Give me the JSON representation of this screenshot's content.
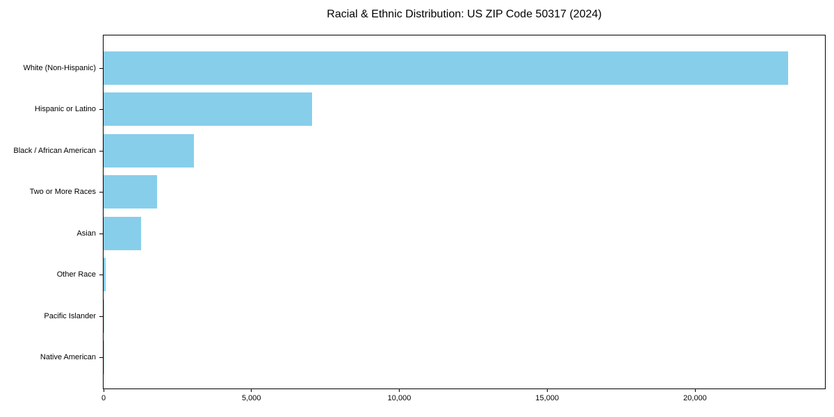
{
  "chart_data": {
    "type": "bar",
    "orientation": "horizontal",
    "title": "Racial & Ethnic Distribution: US ZIP Code 50317 (2024)",
    "categories": [
      "White (Non-Hispanic)",
      "Hispanic or Latino",
      "Black / African American",
      "Two or More Races",
      "Asian",
      "Other Race",
      "Pacific Islander",
      "Native American"
    ],
    "values": [
      23150,
      7050,
      3050,
      1810,
      1270,
      70,
      20,
      10
    ],
    "xlabel": "",
    "ylabel": "",
    "xticks": [
      0,
      5000,
      10000,
      15000,
      20000
    ],
    "xtick_labels": [
      "0",
      "5,000",
      "10,000",
      "15,000",
      "20,000"
    ],
    "xlim": [
      0,
      24400
    ],
    "ylim_order": "largest value at top, sorted descending",
    "bar_color": "#87CEEB",
    "axes_frame_color": "#000000",
    "text_color": "#000000",
    "background_color": "#FFFFFF",
    "grid": false,
    "legend": null
  }
}
